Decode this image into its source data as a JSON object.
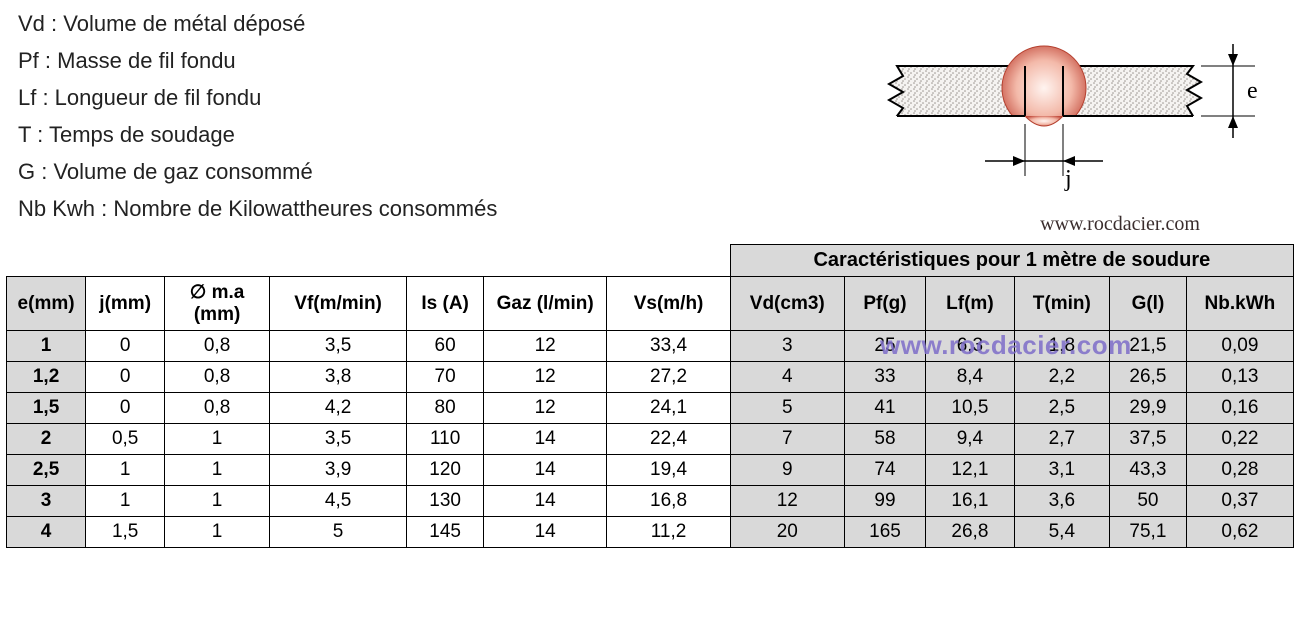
{
  "definitions": [
    "Vd : Volume de métal déposé",
    "Pf : Masse de fil fondu",
    "Lf : Longueur de fil fondu",
    "T : Temps de soudage",
    "G : Volume de gaz consommé",
    "Nb Kwh : Nombre de Kilowattheures consommés"
  ],
  "diagram": {
    "label_e": "e",
    "label_j": "j",
    "url": "www.rocdacier.com",
    "colors": {
      "outline": "#000000",
      "hatch": "#a39f9c",
      "bead_outer": "#b83232",
      "bead_inner": "#fef5f2",
      "dim_line": "#2c2c2c"
    }
  },
  "table": {
    "group_header": "Caractéristiques pour 1 mètre de soudure",
    "columns": [
      "e(mm)",
      "j(mm)",
      "∅ m.a (mm)",
      "Vf(m/min)",
      "Is (A)",
      "Gaz (l/min)",
      "Vs(m/h)",
      "Vd(cm3)",
      "Pf(g)",
      "Lf(m)",
      "T(min)",
      "G(l)",
      "Nb.kWh"
    ],
    "grey_from_col": 7,
    "rows": [
      [
        "1",
        "0",
        "0,8",
        "3,5",
        "60",
        "12",
        "33,4",
        "3",
        "25",
        "6,3",
        "1,8",
        "21,5",
        "0,09"
      ],
      [
        "1,2",
        "0",
        "0,8",
        "3,8",
        "70",
        "12",
        "27,2",
        "4",
        "33",
        "8,4",
        "2,2",
        "26,5",
        "0,13"
      ],
      [
        "1,5",
        "0",
        "0,8",
        "4,2",
        "80",
        "12",
        "24,1",
        "5",
        "41",
        "10,5",
        "2,5",
        "29,9",
        "0,16"
      ],
      [
        "2",
        "0,5",
        "1",
        "3,5",
        "110",
        "14",
        "22,4",
        "7",
        "58",
        "9,4",
        "2,7",
        "37,5",
        "0,22"
      ],
      [
        "2,5",
        "1",
        "1",
        "3,9",
        "120",
        "14",
        "19,4",
        "9",
        "74",
        "12,1",
        "3,1",
        "43,3",
        "0,28"
      ],
      [
        "3",
        "1",
        "1",
        "4,5",
        "130",
        "14",
        "16,8",
        "12",
        "99",
        "16,1",
        "3,6",
        "50",
        "0,37"
      ],
      [
        "4",
        "1,5",
        "1",
        "5",
        "145",
        "14",
        "11,2",
        "20",
        "165",
        "26,8",
        "5,4",
        "75,1",
        "0,62"
      ]
    ]
  },
  "watermark": "www.rocdacier.com"
}
